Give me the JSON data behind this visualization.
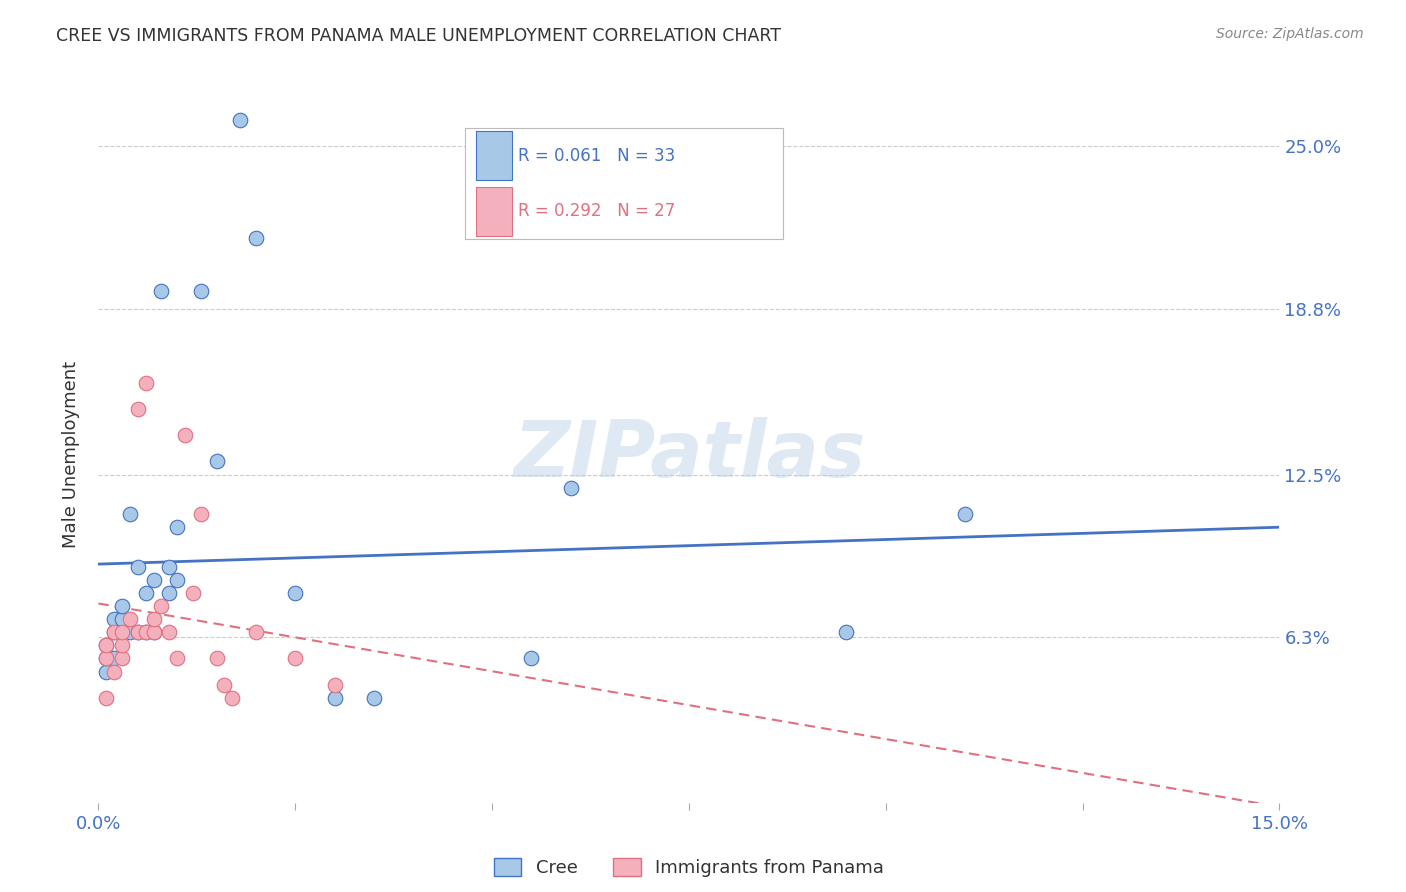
{
  "title": "CREE VS IMMIGRANTS FROM PANAMA MALE UNEMPLOYMENT CORRELATION CHART",
  "source": "Source: ZipAtlas.com",
  "ylabel": "Male Unemployment",
  "ytick_labels": [
    "25.0%",
    "18.8%",
    "12.5%",
    "6.3%"
  ],
  "ytick_values": [
    0.25,
    0.188,
    0.125,
    0.063
  ],
  "cree_color": "#a8c8e8",
  "panama_color": "#f4b0bc",
  "trendline_cree_color": "#4472c4",
  "trendline_panama_color": "#e07080",
  "watermark": "ZIPatlas",
  "xlim": [
    0.0,
    0.15
  ],
  "ylim": [
    0.0,
    0.265
  ],
  "cree_x": [
    0.001,
    0.001,
    0.001,
    0.002,
    0.002,
    0.002,
    0.003,
    0.003,
    0.003,
    0.004,
    0.004,
    0.005,
    0.005,
    0.006,
    0.006,
    0.007,
    0.007,
    0.008,
    0.009,
    0.009,
    0.01,
    0.01,
    0.013,
    0.015,
    0.018,
    0.02,
    0.025,
    0.03,
    0.035,
    0.055,
    0.06,
    0.095,
    0.11
  ],
  "cree_y": [
    0.05,
    0.055,
    0.06,
    0.055,
    0.065,
    0.07,
    0.065,
    0.07,
    0.075,
    0.065,
    0.11,
    0.09,
    0.065,
    0.065,
    0.08,
    0.065,
    0.085,
    0.195,
    0.09,
    0.08,
    0.085,
    0.105,
    0.195,
    0.13,
    0.26,
    0.215,
    0.08,
    0.04,
    0.04,
    0.055,
    0.12,
    0.065,
    0.11
  ],
  "panama_x": [
    0.001,
    0.001,
    0.001,
    0.002,
    0.002,
    0.003,
    0.003,
    0.003,
    0.004,
    0.005,
    0.005,
    0.006,
    0.006,
    0.007,
    0.007,
    0.008,
    0.009,
    0.01,
    0.011,
    0.012,
    0.013,
    0.015,
    0.016,
    0.017,
    0.02,
    0.025,
    0.03
  ],
  "panama_y": [
    0.04,
    0.055,
    0.06,
    0.05,
    0.065,
    0.055,
    0.06,
    0.065,
    0.07,
    0.065,
    0.15,
    0.065,
    0.16,
    0.065,
    0.07,
    0.075,
    0.065,
    0.055,
    0.14,
    0.08,
    0.11,
    0.055,
    0.045,
    0.04,
    0.065,
    0.055,
    0.045
  ],
  "background_color": "#ffffff",
  "grid_color": "#cccccc",
  "axis_color": "#4472c4",
  "title_color": "#333333",
  "label_color": "#333333",
  "legend_r1": "R = 0.061",
  "legend_n1": "N = 33",
  "legend_r2": "R = 0.292",
  "legend_n2": "N = 27"
}
